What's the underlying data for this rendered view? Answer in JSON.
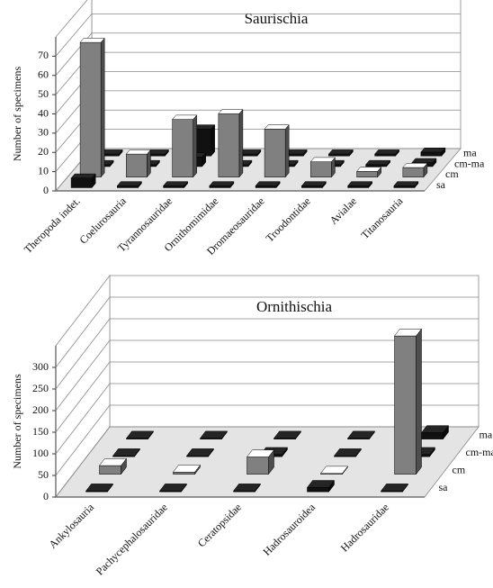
{
  "chart_data": [
    {
      "type": "bar",
      "title": "Saurischia",
      "y_label": "Number of specimens",
      "categories": [
        "Theropoda indet.",
        "Coelurosauria",
        "Tyrannosauridae",
        "Ornithomimidae",
        "Dromaeosauridae",
        "Troodontidae",
        "Avialae",
        "Titanosauria"
      ],
      "series": [
        {
          "name": "sa",
          "color": "#111111",
          "values": [
            5,
            1,
            1,
            1,
            1,
            1,
            1,
            1
          ]
        },
        {
          "name": "cm",
          "color": "#808080",
          "values": [
            70,
            12,
            30,
            33,
            25,
            8,
            3,
            5
          ]
        },
        {
          "name": "cm-ma",
          "color": "#111111",
          "values": [
            1,
            1,
            5,
            1,
            1,
            1,
            1,
            2
          ]
        },
        {
          "name": "ma",
          "color": "#111111",
          "values": [
            1,
            1,
            14,
            1,
            1,
            1,
            1,
            2
          ]
        }
      ],
      "ylim": [
        0,
        80
      ],
      "yticks": [
        0,
        10,
        20,
        30,
        40,
        50,
        60,
        70
      ],
      "grid": true
    },
    {
      "type": "bar",
      "title": "Ornithischia",
      "y_label": "Number of specimens",
      "categories": [
        "Ankylosauria",
        "Pachycephalosauridae",
        "Ceratopsidae",
        "Hadrosauroidea",
        "Hadrosauridae"
      ],
      "series": [
        {
          "name": "sa",
          "color": "#111111",
          "values": [
            2,
            2,
            2,
            10,
            2
          ]
        },
        {
          "name": "cm",
          "color": "#808080",
          "values": [
            20,
            5,
            40,
            2,
            320
          ]
        },
        {
          "name": "cm-ma",
          "color": "#111111",
          "values": [
            2,
            2,
            5,
            2,
            5
          ]
        },
        {
          "name": "ma",
          "color": "#111111",
          "values": [
            2,
            2,
            2,
            2,
            15
          ]
        }
      ],
      "ylim": [
        0,
        350
      ],
      "yticks": [
        0,
        50,
        100,
        150,
        200,
        250,
        300
      ],
      "grid": true
    }
  ]
}
